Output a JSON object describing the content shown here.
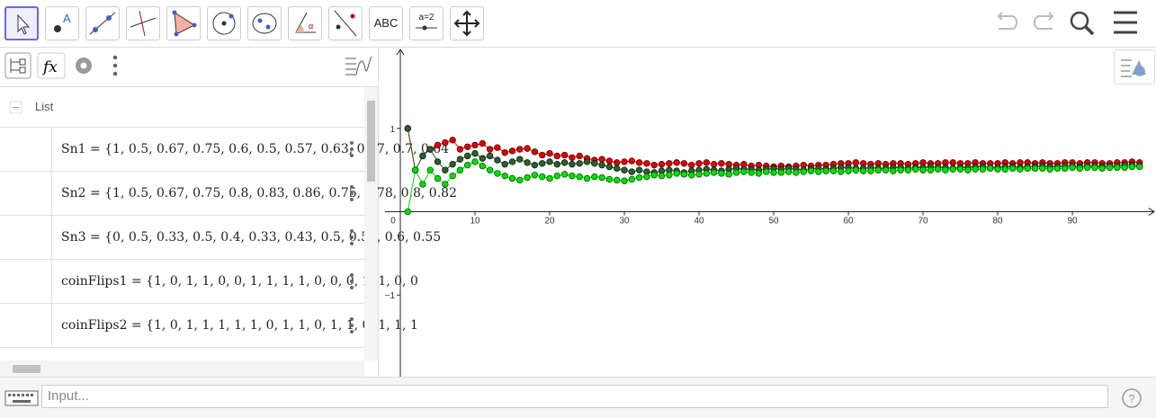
{
  "toolbar": {
    "text_tool": "ABC",
    "slider_tool": "a=2"
  },
  "algebra": {
    "group": "List",
    "items": [
      "Sn1 = {1, 0.5, 0.67, 0.75, 0.6, 0.5, 0.57, 0.63, 0.67, 0.7, 0.64",
      "Sn2 = {1, 0.5, 0.67, 0.75, 0.8, 0.83, 0.86, 0.75, 0.78, 0.8, 0.82",
      "Sn3 = {0, 0.5, 0.33, 0.5, 0.4, 0.33, 0.43, 0.5, 0.56, 0.6, 0.55",
      "coinFlips1 = {1, 0, 1, 1, 0, 0, 1, 1, 1, 1, 0, 0, 0, 1, 1, 0, 0",
      "coinFlips2 = {1, 0, 1, 1, 1, 1, 1, 0, 1, 1, 0, 1, 1, 0, 1, 1, 1"
    ]
  },
  "input": {
    "placeholder": "Input..."
  },
  "graph": {
    "type": "scatter",
    "x": [
      1,
      2,
      3,
      4,
      5,
      6,
      7,
      8,
      9,
      10,
      11,
      12,
      13,
      14,
      15,
      16,
      17,
      18,
      19,
      20,
      21,
      22,
      23,
      24,
      25,
      26,
      27,
      28,
      29,
      30,
      31,
      32,
      33,
      34,
      35,
      36,
      37,
      38,
      39,
      40,
      41,
      42,
      43,
      44,
      45,
      46,
      47,
      48,
      49,
      50,
      51,
      52,
      53,
      54,
      55,
      56,
      57,
      58,
      59,
      60,
      61,
      62,
      63,
      64,
      65,
      66,
      67,
      68,
      69,
      70,
      71,
      72,
      73,
      74,
      75,
      76,
      77,
      78,
      79,
      80,
      81,
      82,
      83,
      84,
      85,
      86,
      87,
      88,
      89,
      90,
      91,
      92,
      93,
      94,
      95,
      96,
      97,
      98,
      99
    ],
    "series": [
      {
        "name": "Sn2",
        "color": "#e00000",
        "stroke": "#5a0000",
        "values": [
          1,
          0.5,
          0.67,
          0.75,
          0.8,
          0.83,
          0.86,
          0.75,
          0.78,
          0.8,
          0.82,
          0.75,
          0.77,
          0.71,
          0.73,
          0.75,
          0.76,
          0.72,
          0.68,
          0.7,
          0.67,
          0.68,
          0.65,
          0.67,
          0.64,
          0.62,
          0.63,
          0.61,
          0.59,
          0.6,
          0.61,
          0.59,
          0.58,
          0.56,
          0.57,
          0.58,
          0.59,
          0.58,
          0.56,
          0.58,
          0.59,
          0.57,
          0.58,
          0.57,
          0.56,
          0.57,
          0.55,
          0.56,
          0.55,
          0.54,
          0.55,
          0.54,
          0.55,
          0.56,
          0.55,
          0.56,
          0.56,
          0.57,
          0.58,
          0.58,
          0.59,
          0.58,
          0.57,
          0.58,
          0.57,
          0.58,
          0.58,
          0.57,
          0.58,
          0.59,
          0.58,
          0.58,
          0.59,
          0.59,
          0.58,
          0.58,
          0.59,
          0.58,
          0.58,
          0.58,
          0.59,
          0.58,
          0.59,
          0.59,
          0.58,
          0.59,
          0.58,
          0.58,
          0.59,
          0.59,
          0.58,
          0.59,
          0.59,
          0.58,
          0.58,
          0.59,
          0.59,
          0.6,
          0.59
        ]
      },
      {
        "name": "Sn1",
        "color": "#2e5e2e",
        "stroke": "#0c200c",
        "values": [
          1,
          0.5,
          0.67,
          0.75,
          0.6,
          0.5,
          0.57,
          0.63,
          0.67,
          0.7,
          0.64,
          0.67,
          0.62,
          0.57,
          0.6,
          0.63,
          0.59,
          0.56,
          0.58,
          0.6,
          0.57,
          0.59,
          0.57,
          0.58,
          0.6,
          0.58,
          0.56,
          0.54,
          0.52,
          0.5,
          0.48,
          0.5,
          0.48,
          0.47,
          0.49,
          0.5,
          0.49,
          0.47,
          0.49,
          0.5,
          0.51,
          0.5,
          0.49,
          0.51,
          0.52,
          0.51,
          0.51,
          0.5,
          0.51,
          0.52,
          0.51,
          0.52,
          0.51,
          0.5,
          0.51,
          0.52,
          0.51,
          0.52,
          0.53,
          0.53,
          0.52,
          0.52,
          0.53,
          0.52,
          0.52,
          0.53,
          0.53,
          0.52,
          0.53,
          0.53,
          0.54,
          0.53,
          0.53,
          0.52,
          0.53,
          0.53,
          0.54,
          0.54,
          0.53,
          0.53,
          0.54,
          0.54,
          0.53,
          0.54,
          0.54,
          0.55,
          0.54,
          0.54,
          0.55,
          0.55,
          0.54,
          0.55,
          0.55,
          0.54,
          0.55,
          0.55,
          0.56,
          0.56,
          0.55
        ]
      },
      {
        "name": "Sn3",
        "color": "#00e000",
        "stroke": "#005a00",
        "values": [
          0,
          0.5,
          0.33,
          0.5,
          0.4,
          0.33,
          0.43,
          0.5,
          0.56,
          0.6,
          0.55,
          0.5,
          0.46,
          0.43,
          0.4,
          0.38,
          0.41,
          0.44,
          0.42,
          0.4,
          0.43,
          0.45,
          0.43,
          0.42,
          0.4,
          0.42,
          0.41,
          0.39,
          0.38,
          0.37,
          0.39,
          0.41,
          0.42,
          0.44,
          0.43,
          0.44,
          0.46,
          0.45,
          0.44,
          0.45,
          0.46,
          0.47,
          0.46,
          0.45,
          0.47,
          0.48,
          0.47,
          0.46,
          0.48,
          0.47,
          0.47,
          0.48,
          0.47,
          0.48,
          0.49,
          0.48,
          0.49,
          0.49,
          0.48,
          0.49,
          0.5,
          0.49,
          0.49,
          0.5,
          0.5,
          0.49,
          0.5,
          0.5,
          0.51,
          0.5,
          0.5,
          0.51,
          0.5,
          0.51,
          0.51,
          0.5,
          0.51,
          0.51,
          0.52,
          0.51,
          0.51,
          0.52,
          0.51,
          0.52,
          0.52,
          0.52,
          0.51,
          0.52,
          0.52,
          0.53,
          0.52,
          0.53,
          0.53,
          0.52,
          0.53,
          0.53,
          0.53,
          0.54,
          0.54
        ]
      }
    ],
    "xlim": [
      -2.05,
      101.2
    ],
    "ylim": [
      -1.98,
      1.97
    ],
    "xticks": [
      0,
      10,
      20,
      30,
      40,
      50,
      60,
      70,
      80,
      90
    ],
    "yticks": [
      {
        "value": -1,
        "label": "−1"
      },
      1
    ]
  }
}
